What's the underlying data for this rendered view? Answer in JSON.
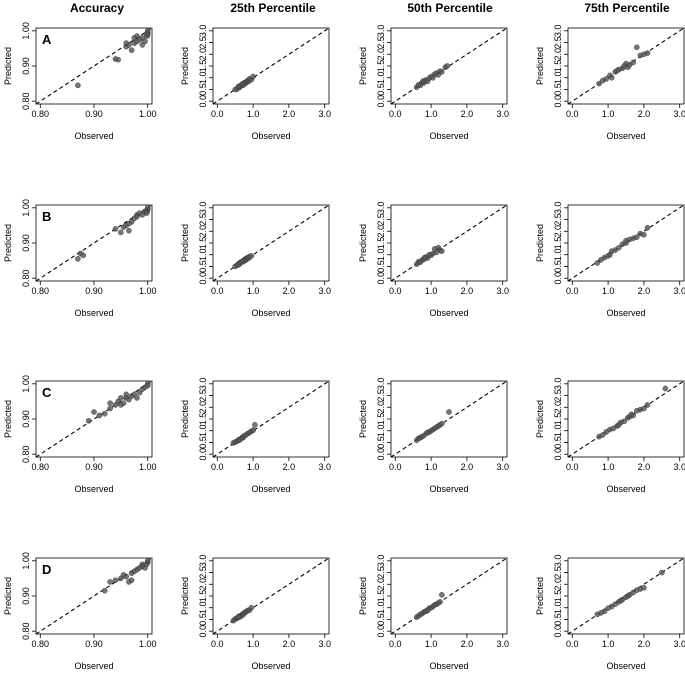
{
  "figure": {
    "column_titles": [
      "Accuracy",
      "25th Percentile",
      "50th Percentile",
      "75th Percentile"
    ],
    "row_labels": [
      "A",
      "B",
      "C",
      "D"
    ],
    "colors": {
      "point": "#555555",
      "point_edge": "#333333",
      "line": "#000000"
    }
  },
  "chart_data": [
    {
      "type": "scatter",
      "panel": "A-accuracy",
      "row": "A",
      "column": "Accuracy",
      "xlabel": "Observed",
      "ylabel": "Predicted",
      "xlim": [
        0.8,
        1.0
      ],
      "ylim": [
        0.8,
        1.0
      ],
      "xticks": [
        "0.80",
        "0.90",
        "1.00"
      ],
      "yticks": [
        "0.80",
        "0.90",
        "1.00"
      ],
      "reference_line": "y = x",
      "x": [
        0.87,
        0.94,
        0.945,
        0.96,
        0.965,
        0.97,
        0.975,
        0.975,
        0.98,
        0.98,
        0.985,
        0.99,
        0.99,
        0.995,
        1.0,
        1.0,
        1.0,
        0.999,
        0.998,
        0.96
      ],
      "y": [
        0.845,
        0.92,
        0.918,
        0.955,
        0.96,
        0.945,
        0.965,
        0.98,
        0.97,
        0.985,
        0.975,
        0.98,
        0.96,
        0.97,
        0.99,
        0.995,
        1.0,
        0.985,
        0.99,
        0.965
      ]
    },
    {
      "type": "scatter",
      "panel": "A-p25",
      "row": "A",
      "column": "25th Percentile",
      "xlabel": "Observed",
      "ylabel": "Predicted",
      "xlim": [
        0,
        3
      ],
      "ylim": [
        0,
        3
      ],
      "xticks": [
        "0.0",
        "1.0",
        "2.0",
        "3.0"
      ],
      "yticks": [
        "0.0",
        "0.5",
        "1.0",
        "1.5",
        "2.0",
        "2.5",
        "3.0"
      ],
      "reference_line": "y = x",
      "x": [
        0.5,
        0.55,
        0.6,
        0.62,
        0.65,
        0.7,
        0.72,
        0.75,
        0.78,
        0.8,
        0.82,
        0.85,
        0.88,
        0.9,
        0.95,
        1.0,
        0.7,
        0.6
      ],
      "y": [
        0.5,
        0.52,
        0.6,
        0.58,
        0.66,
        0.7,
        0.68,
        0.78,
        0.75,
        0.82,
        0.8,
        0.88,
        0.85,
        0.95,
        0.92,
        1.05,
        0.74,
        0.64
      ]
    },
    {
      "type": "scatter",
      "panel": "A-p50",
      "row": "A",
      "column": "50th Percentile",
      "xlabel": "Observed",
      "ylabel": "Predicted",
      "xlim": [
        0,
        3
      ],
      "ylim": [
        0,
        3
      ],
      "xticks": [
        "0.0",
        "1.0",
        "2.0",
        "3.0"
      ],
      "yticks": [
        "0.0",
        "0.5",
        "1.0",
        "1.5",
        "2.0",
        "2.5",
        "3.0"
      ],
      "reference_line": "y = x",
      "x": [
        0.6,
        0.65,
        0.7,
        0.75,
        0.8,
        0.85,
        0.9,
        0.95,
        1.0,
        1.05,
        1.1,
        1.15,
        1.2,
        1.25,
        1.3,
        1.4,
        1.45,
        0.78
      ],
      "y": [
        0.6,
        0.7,
        0.68,
        0.8,
        0.78,
        0.9,
        0.85,
        0.98,
        1.05,
        1.0,
        1.15,
        1.2,
        1.12,
        1.28,
        1.25,
        1.45,
        1.5,
        0.86
      ]
    },
    {
      "type": "scatter",
      "panel": "A-p75",
      "row": "A",
      "column": "75th Percentile",
      "xlabel": "Observed",
      "ylabel": "Predicted",
      "xlim": [
        0,
        3
      ],
      "ylim": [
        0,
        3
      ],
      "xticks": [
        "0.0",
        "1.0",
        "2.0",
        "3.0"
      ],
      "yticks": [
        "0.0",
        "0.5",
        "1.0",
        "1.5",
        "2.0",
        "2.5",
        "3.0"
      ],
      "reference_line": "y = x",
      "x": [
        0.75,
        0.85,
        0.95,
        1.05,
        1.1,
        1.2,
        1.3,
        1.4,
        1.5,
        1.55,
        1.6,
        1.7,
        1.8,
        1.9,
        2.0,
        2.1,
        1.25,
        1.45
      ],
      "y": [
        0.75,
        0.88,
        0.95,
        1.1,
        1.0,
        1.25,
        1.35,
        1.4,
        1.6,
        1.45,
        1.55,
        1.65,
        2.3,
        1.95,
        2.0,
        2.05,
        1.3,
        1.5
      ]
    },
    {
      "type": "scatter",
      "panel": "B-accuracy",
      "row": "B",
      "column": "Accuracy",
      "xlabel": "Observed",
      "ylabel": "Predicted",
      "xlim": [
        0.8,
        1.0
      ],
      "ylim": [
        0.8,
        1.0
      ],
      "xticks": [
        "0.80",
        "0.90",
        "1.00"
      ],
      "yticks": [
        "0.80",
        "0.90",
        "1.00"
      ],
      "reference_line": "y = x",
      "x": [
        0.87,
        0.875,
        0.88,
        0.94,
        0.95,
        0.955,
        0.96,
        0.965,
        0.97,
        0.975,
        0.98,
        0.98,
        0.985,
        0.99,
        0.995,
        1.0,
        1.0,
        0.999,
        0.998,
        0.965
      ],
      "y": [
        0.855,
        0.87,
        0.865,
        0.94,
        0.93,
        0.945,
        0.95,
        0.935,
        0.96,
        0.97,
        0.98,
        0.975,
        0.985,
        0.98,
        0.99,
        0.995,
        1.0,
        0.99,
        0.985,
        0.955
      ]
    },
    {
      "type": "scatter",
      "panel": "B-p25",
      "row": "B",
      "column": "25th Percentile",
      "xlabel": "Observed",
      "ylabel": "Predicted",
      "xlim": [
        0,
        3
      ],
      "ylim": [
        0,
        3
      ],
      "xticks": [
        "0.0",
        "1.0",
        "2.0",
        "3.0"
      ],
      "yticks": [
        "0.0",
        "0.5",
        "1.0",
        "1.5",
        "2.0",
        "2.5",
        "3.0"
      ],
      "reference_line": "y = x",
      "x": [
        0.5,
        0.55,
        0.6,
        0.62,
        0.65,
        0.7,
        0.72,
        0.75,
        0.78,
        0.8,
        0.82,
        0.85,
        0.88,
        0.9,
        0.95,
        0.68,
        0.6
      ],
      "y": [
        0.5,
        0.55,
        0.62,
        0.6,
        0.68,
        0.72,
        0.7,
        0.78,
        0.76,
        0.84,
        0.8,
        0.88,
        0.86,
        0.92,
        0.95,
        0.7,
        0.58
      ]
    },
    {
      "type": "scatter",
      "panel": "B-p50",
      "row": "B",
      "column": "50th Percentile",
      "xlabel": "Observed",
      "ylabel": "Predicted",
      "xlim": [
        0,
        3
      ],
      "ylim": [
        0,
        3
      ],
      "xticks": [
        "0.0",
        "1.0",
        "2.0",
        "3.0"
      ],
      "yticks": [
        "0.0",
        "0.5",
        "1.0",
        "1.5",
        "2.0",
        "2.5",
        "3.0"
      ],
      "reference_line": "y = x",
      "x": [
        0.6,
        0.65,
        0.7,
        0.75,
        0.8,
        0.85,
        0.9,
        0.95,
        1.0,
        1.05,
        1.1,
        1.15,
        1.2,
        1.25,
        1.3,
        0.82
      ],
      "y": [
        0.6,
        0.7,
        0.68,
        0.78,
        0.8,
        0.9,
        0.86,
        1.0,
        0.98,
        1.05,
        1.25,
        1.1,
        1.3,
        1.2,
        1.15,
        0.88
      ]
    },
    {
      "type": "scatter",
      "panel": "B-p75",
      "row": "B",
      "column": "75th Percentile",
      "xlabel": "Observed",
      "ylabel": "Predicted",
      "xlim": [
        0,
        3
      ],
      "ylim": [
        0,
        3
      ],
      "xticks": [
        "0.0",
        "1.0",
        "2.0",
        "3.0"
      ],
      "yticks": [
        "0.0",
        "0.5",
        "1.0",
        "1.5",
        "2.0",
        "2.5",
        "3.0"
      ],
      "reference_line": "y = x",
      "x": [
        0.7,
        0.8,
        0.9,
        1.0,
        1.1,
        1.2,
        1.3,
        1.4,
        1.5,
        1.6,
        1.7,
        1.8,
        1.9,
        2.0,
        2.1,
        1.05,
        1.5
      ],
      "y": [
        0.65,
        0.78,
        0.88,
        0.95,
        1.15,
        1.2,
        1.3,
        1.45,
        1.5,
        1.65,
        1.7,
        1.75,
        1.9,
        1.85,
        2.15,
        1.0,
        1.6
      ]
    },
    {
      "type": "scatter",
      "panel": "C-accuracy",
      "row": "C",
      "column": "Accuracy",
      "xlabel": "Observed",
      "ylabel": "Predicted",
      "xlim": [
        0.8,
        1.0
      ],
      "ylim": [
        0.8,
        1.0
      ],
      "xticks": [
        "0.80",
        "0.90",
        "1.00"
      ],
      "yticks": [
        "0.80",
        "0.90",
        "1.00"
      ],
      "reference_line": "y = x",
      "x": [
        0.89,
        0.9,
        0.91,
        0.92,
        0.93,
        0.94,
        0.945,
        0.95,
        0.955,
        0.96,
        0.965,
        0.97,
        0.975,
        0.98,
        0.985,
        0.99,
        0.995,
        1.0,
        1.0,
        0.93,
        0.95,
        0.96
      ],
      "y": [
        0.895,
        0.92,
        0.91,
        0.915,
        0.93,
        0.94,
        0.95,
        0.96,
        0.945,
        0.97,
        0.955,
        0.965,
        0.97,
        0.96,
        0.975,
        0.985,
        0.99,
        1.0,
        0.995,
        0.945,
        0.94,
        0.96
      ]
    },
    {
      "type": "scatter",
      "panel": "C-p25",
      "row": "C",
      "column": "25th Percentile",
      "xlabel": "Observed",
      "ylabel": "Predicted",
      "xlim": [
        0,
        3
      ],
      "ylim": [
        0,
        3
      ],
      "xticks": [
        "0.0",
        "1.0",
        "2.0",
        "3.0"
      ],
      "yticks": [
        "0.0",
        "0.5",
        "1.0",
        "1.5",
        "2.0",
        "2.5",
        "3.0"
      ],
      "reference_line": "y = x",
      "x": [
        0.45,
        0.5,
        0.55,
        0.6,
        0.65,
        0.7,
        0.72,
        0.75,
        0.8,
        0.85,
        0.9,
        0.95,
        1.0,
        1.05,
        0.62
      ],
      "y": [
        0.48,
        0.52,
        0.55,
        0.62,
        0.65,
        0.72,
        0.7,
        0.78,
        0.82,
        0.88,
        0.92,
        0.98,
        1.02,
        1.25,
        0.6
      ]
    },
    {
      "type": "scatter",
      "panel": "C-p50",
      "row": "C",
      "column": "50th Percentile",
      "xlabel": "Observed",
      "ylabel": "Predicted",
      "xlim": [
        0,
        3
      ],
      "ylim": [
        0,
        3
      ],
      "xticks": [
        "0.0",
        "1.0",
        "2.0",
        "3.0"
      ],
      "yticks": [
        "0.0",
        "0.5",
        "1.0",
        "1.5",
        "2.0",
        "2.5",
        "3.0"
      ],
      "reference_line": "y = x",
      "x": [
        0.6,
        0.65,
        0.7,
        0.75,
        0.8,
        0.9,
        0.95,
        1.0,
        1.05,
        1.1,
        1.15,
        1.2,
        1.25,
        1.3,
        1.5,
        0.88
      ],
      "y": [
        0.6,
        0.68,
        0.7,
        0.75,
        0.8,
        0.92,
        0.95,
        1.0,
        1.05,
        1.1,
        1.15,
        1.2,
        1.25,
        1.3,
        1.8,
        0.9
      ]
    },
    {
      "type": "scatter",
      "panel": "C-p75",
      "row": "C",
      "column": "75th Percentile",
      "xlabel": "Observed",
      "ylabel": "Predicted",
      "xlim": [
        0,
        3
      ],
      "ylim": [
        0,
        3
      ],
      "xticks": [
        "0.0",
        "1.0",
        "2.0",
        "3.0"
      ],
      "yticks": [
        "0.0",
        "0.5",
        "1.0",
        "1.5",
        "2.0",
        "2.5",
        "3.0"
      ],
      "reference_line": "y = x",
      "x": [
        0.75,
        0.85,
        0.95,
        1.05,
        1.15,
        1.25,
        1.35,
        1.45,
        1.55,
        1.6,
        1.7,
        1.8,
        1.9,
        2.0,
        2.1,
        2.6,
        1.3,
        1.65
      ],
      "y": [
        0.75,
        0.82,
        0.95,
        1.05,
        1.1,
        1.2,
        1.35,
        1.4,
        1.55,
        1.6,
        1.65,
        1.85,
        1.9,
        1.95,
        2.1,
        2.8,
        1.25,
        1.7
      ]
    },
    {
      "type": "scatter",
      "panel": "D-accuracy",
      "row": "D",
      "column": "Accuracy",
      "xlabel": "Observed",
      "ylabel": "Predicted",
      "xlim": [
        0.8,
        1.0
      ],
      "ylim": [
        0.8,
        1.0
      ],
      "xticks": [
        "0.80",
        "0.90",
        "1.00"
      ],
      "yticks": [
        "0.80",
        "0.90",
        "1.00"
      ],
      "reference_line": "y = x",
      "x": [
        0.92,
        0.93,
        0.94,
        0.95,
        0.955,
        0.96,
        0.965,
        0.97,
        0.975,
        0.98,
        0.985,
        0.99,
        0.99,
        0.995,
        1.0,
        1.0,
        0.998,
        0.97
      ],
      "y": [
        0.915,
        0.94,
        0.945,
        0.95,
        0.96,
        0.955,
        0.94,
        0.965,
        0.97,
        0.975,
        0.98,
        0.985,
        0.99,
        0.98,
        0.995,
        1.0,
        0.99,
        0.945
      ]
    },
    {
      "type": "scatter",
      "panel": "D-p25",
      "row": "D",
      "column": "25th Percentile",
      "xlabel": "Observed",
      "ylabel": "Predicted",
      "xlim": [
        0,
        3
      ],
      "ylim": [
        0,
        3
      ],
      "xticks": [
        "0.0",
        "1.0",
        "2.0",
        "3.0"
      ],
      "yticks": [
        "0.0",
        "0.5",
        "1.0",
        "1.5",
        "2.0",
        "2.5",
        "3.0"
      ],
      "reference_line": "y = x",
      "x": [
        0.45,
        0.5,
        0.55,
        0.6,
        0.62,
        0.65,
        0.7,
        0.72,
        0.75,
        0.8,
        0.82,
        0.85,
        0.9,
        0.95,
        0.58
      ],
      "y": [
        0.45,
        0.52,
        0.55,
        0.6,
        0.65,
        0.62,
        0.72,
        0.7,
        0.78,
        0.82,
        0.85,
        0.88,
        0.9,
        1.0,
        0.6
      ]
    },
    {
      "type": "scatter",
      "panel": "D-p50",
      "row": "D",
      "column": "50th Percentile",
      "xlabel": "Observed",
      "ylabel": "Predicted",
      "xlim": [
        0,
        3
      ],
      "ylim": [
        0,
        3
      ],
      "xticks": [
        "0.0",
        "1.0",
        "2.0",
        "3.0"
      ],
      "yticks": [
        "0.0",
        "0.5",
        "1.0",
        "1.5",
        "2.0",
        "2.5",
        "3.0"
      ],
      "reference_line": "y = x",
      "x": [
        0.6,
        0.65,
        0.7,
        0.75,
        0.8,
        0.85,
        0.9,
        0.95,
        1.0,
        1.05,
        1.1,
        1.15,
        1.2,
        1.25,
        1.3,
        0.9
      ],
      "y": [
        0.6,
        0.65,
        0.72,
        0.75,
        0.82,
        0.85,
        0.9,
        0.98,
        1.0,
        1.05,
        1.12,
        1.15,
        1.2,
        1.25,
        1.55,
        0.88
      ]
    },
    {
      "type": "scatter",
      "panel": "D-p75",
      "row": "D",
      "column": "75th Percentile",
      "xlabel": "Observed",
      "ylabel": "Predicted",
      "xlim": [
        0,
        3
      ],
      "ylim": [
        0,
        3
      ],
      "xticks": [
        "0.0",
        "1.0",
        "2.0",
        "3.0"
      ],
      "yticks": [
        "0.0",
        "0.5",
        "1.0",
        "1.5",
        "2.0",
        "2.5",
        "3.0"
      ],
      "reference_line": "y = x",
      "x": [
        0.7,
        0.8,
        0.9,
        1.0,
        1.1,
        1.2,
        1.3,
        1.4,
        1.5,
        1.6,
        1.7,
        1.8,
        1.9,
        2.0,
        2.5,
        1.35,
        1.55
      ],
      "y": [
        0.72,
        0.78,
        0.85,
        0.98,
        1.05,
        1.15,
        1.25,
        1.35,
        1.45,
        1.55,
        1.65,
        1.75,
        1.8,
        1.85,
        2.5,
        1.3,
        1.5
      ]
    }
  ]
}
